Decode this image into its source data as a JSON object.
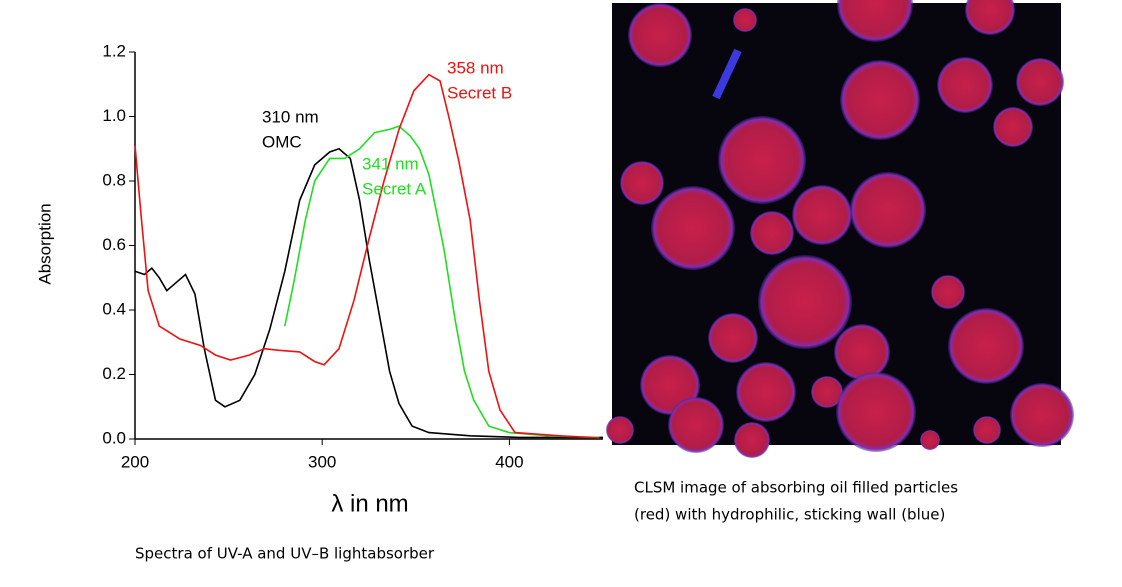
{
  "chart_data": {
    "type": "line",
    "xlabel": "λ in nm",
    "ylabel": "Absorption",
    "xlim": [
      200,
      450
    ],
    "xticks": [
      200,
      300,
      400
    ],
    "ylim": [
      0,
      1.2
    ],
    "yticks": [
      {
        "value": 0,
        "label": "0.0"
      },
      0.2,
      0.4,
      0.6,
      0.8,
      {
        "value": 1,
        "label": "1.0"
      },
      1.2
    ],
    "series": [
      {
        "color": "#000000",
        "x": [
          200,
          205,
          209,
          213,
          217,
          221,
          227,
          232,
          237,
          243,
          248,
          256,
          264,
          272,
          280,
          288,
          296,
          304,
          309,
          315,
          320,
          325,
          331,
          336,
          341,
          348,
          357,
          379,
          405,
          450
        ],
        "values": [
          0.52,
          0.51,
          0.53,
          0.5,
          0.46,
          0.48,
          0.51,
          0.45,
          0.28,
          0.12,
          0.1,
          0.12,
          0.2,
          0.34,
          0.52,
          0.74,
          0.85,
          0.89,
          0.9,
          0.87,
          0.74,
          0.56,
          0.37,
          0.21,
          0.11,
          0.04,
          0.02,
          0.01,
          0.005,
          0.005
        ]
      },
      {
        "color": "#22dd22",
        "x": [
          280,
          285,
          291,
          296,
          304,
          312,
          320,
          328,
          336,
          341,
          347,
          352,
          357,
          365,
          371,
          376,
          381,
          389,
          400,
          421,
          448
        ],
        "values": [
          0.35,
          0.49,
          0.68,
          0.8,
          0.87,
          0.87,
          0.9,
          0.95,
          0.96,
          0.97,
          0.94,
          0.9,
          0.82,
          0.59,
          0.37,
          0.21,
          0.12,
          0.04,
          0.02,
          0.01,
          0.005
        ]
      },
      {
        "color": "#ee1111",
        "x": [
          200,
          203,
          207,
          213,
          224,
          235,
          243,
          251,
          261,
          269,
          277,
          288,
          296,
          301,
          309,
          317,
          325,
          333,
          341,
          349,
          357,
          363,
          368,
          373,
          379,
          384,
          389,
          395,
          403,
          427,
          448
        ],
        "values": [
          0.91,
          0.71,
          0.46,
          0.35,
          0.31,
          0.29,
          0.26,
          0.245,
          0.26,
          0.28,
          0.275,
          0.27,
          0.24,
          0.23,
          0.28,
          0.43,
          0.62,
          0.8,
          0.96,
          1.08,
          1.13,
          1.11,
          0.99,
          0.86,
          0.68,
          0.43,
          0.21,
          0.09,
          0.02,
          0.01,
          0.003
        ]
      }
    ],
    "annotations": [
      {
        "text": [
          "310 nm",
          "OMC"
        ],
        "color": "#000000"
      },
      {
        "text": [
          "341 nm",
          "Secret A"
        ],
        "color": "#22dd22"
      },
      {
        "text": [
          "358 nm",
          "Secret B"
        ],
        "color": "#ee1111"
      }
    ]
  },
  "captions": {
    "spectra": "Spectra of UV-A and UV–B lightabsorber",
    "image": [
      "CLSM image of absorbing oil filled particles",
      "(red) with hydrophilic, sticking wall (blue)"
    ]
  }
}
